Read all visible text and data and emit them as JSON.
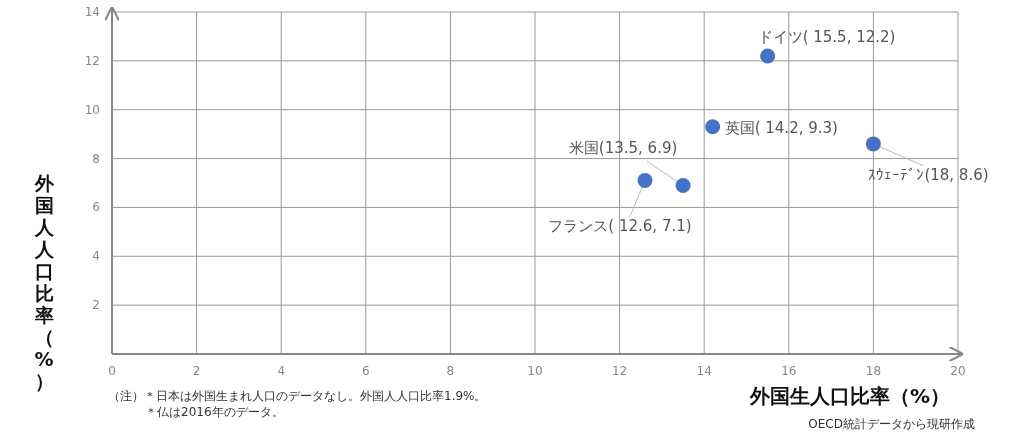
{
  "chart_data": {
    "type": "scatter",
    "xlabel": "外国生人口比率（%）",
    "ylabel": "外国人人口比率（%）",
    "x": [
      12.6,
      13.5,
      14.2,
      15.5,
      18
    ],
    "values": [
      7.1,
      6.9,
      9.3,
      12.2,
      8.6
    ],
    "color": "#4472c4",
    "marker": "circle",
    "xlim": [
      0,
      20
    ],
    "xticks": [
      0,
      2,
      4,
      6,
      8,
      10,
      12,
      14,
      16,
      18,
      20
    ],
    "ylim": [
      0,
      14
    ],
    "yticks": [
      2,
      4,
      6,
      8,
      10,
      12,
      14
    ],
    "grid": true,
    "annotations": [
      {
        "text": "フランス( 12.6, 7.1)",
        "x": 12.6,
        "y": 7.1
      },
      {
        "text": "米国(13.5, 6.9)",
        "x": 13.5,
        "y": 6.9
      },
      {
        "text": "英国( 14.2, 9.3)",
        "x": 14.2,
        "y": 9.3
      },
      {
        "text": "ドイツ( 15.5, 12.2)",
        "x": 15.5,
        "y": 12.2
      },
      {
        "text": "ｽｳｪｰﾃﾞﾝ(18, 8.6)",
        "x": 18,
        "y": 8.6
      },
      "（注）＊日本は外国生まれ人口のデータなし。外国人人口比率1.9%。",
      "＊仏は2016年のデータ。",
      "OECD統計データから現研作成"
    ]
  }
}
